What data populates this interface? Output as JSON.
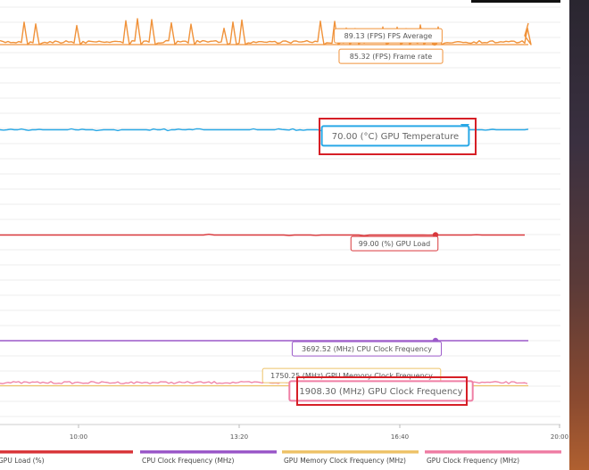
{
  "chart_data": {
    "type": "line",
    "x_ticks": [
      "10:00",
      "13:20",
      "16:40",
      "20:00"
    ],
    "series": [
      {
        "name": "FPS Average",
        "color": "#f0923a",
        "latest_label": "89.13 (FPS) FPS Average"
      },
      {
        "name": "Frame rate",
        "color": "#f0923a",
        "latest_label": "85.32 (FPS) Frame rate"
      },
      {
        "name": "GPU Temperature",
        "color": "#29a8e6",
        "latest_label": "70.00 (°C) GPU Temperature"
      },
      {
        "name": "GPU Load",
        "color": "#d9383c",
        "latest_label": "99.00 (%) GPU Load"
      },
      {
        "name": "CPU Clock Frequency",
        "color": "#9b59c9",
        "latest_label": "3692.52 (MHz) CPU Clock Frequency"
      },
      {
        "name": "GPU Memory Clock Frequency",
        "color": "#eec36a",
        "latest_label": "1750.25 (MHz) GPU Memory Clock Frequency"
      },
      {
        "name": "GPU Clock Frequency",
        "color": "#ef7fa5",
        "latest_label": "1908.30 (MHz) GPU Clock Frequency"
      }
    ],
    "legend": [
      {
        "label": "GPU Load (%)",
        "color": "#d9383c"
      },
      {
        "label": "CPU Clock Frequency (MHz)",
        "color": "#9b59c9"
      },
      {
        "label": "GPU Memory Clock Frequency (MHz)",
        "color": "#eec36a"
      },
      {
        "label": "GPU Clock Frequency (MHz)",
        "color": "#ef7fa5"
      }
    ],
    "legend_placement": "bottom",
    "grid": true,
    "highlight_color": "#d61f26"
  }
}
